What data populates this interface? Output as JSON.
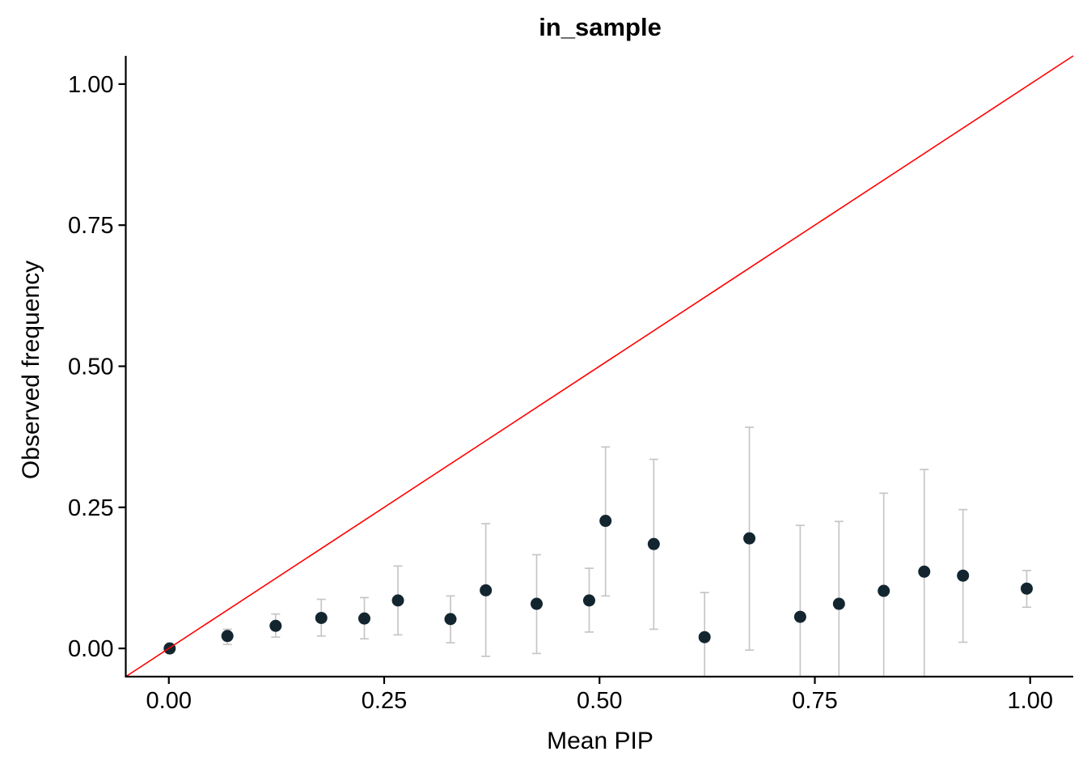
{
  "chart_data": {
    "type": "scatter",
    "title": "in_sample",
    "xlabel": "Mean PIP",
    "ylabel": "Observed frequency",
    "xlim": [
      -0.05,
      1.05
    ],
    "ylim": [
      -0.05,
      1.05
    ],
    "grid": false,
    "legend": false,
    "x_ticks": {
      "values": [
        0,
        0.25,
        0.5,
        0.75,
        1.0
      ],
      "labels": [
        "0.00",
        "0.25",
        "0.50",
        "0.75",
        "1.00"
      ]
    },
    "y_ticks": {
      "values": [
        0,
        0.25,
        0.5,
        0.75,
        1.0
      ],
      "labels": [
        "0.00",
        "0.25",
        "0.50",
        "0.75",
        "1.00"
      ]
    },
    "identity_line": {
      "slope": 1,
      "intercept": 0,
      "color": "#ff0000"
    },
    "point_color": "#132630",
    "error_bar_color": "#c6c6c6",
    "axis_color": "#000000",
    "points": [
      {
        "x": 0.001,
        "y": 0.0,
        "lo": 0.0,
        "hi": 0.003
      },
      {
        "x": 0.068,
        "y": 0.022,
        "lo": 0.007,
        "hi": 0.034
      },
      {
        "x": 0.124,
        "y": 0.04,
        "lo": 0.02,
        "hi": 0.061
      },
      {
        "x": 0.177,
        "y": 0.054,
        "lo": 0.022,
        "hi": 0.087
      },
      {
        "x": 0.227,
        "y": 0.053,
        "lo": 0.017,
        "hi": 0.09
      },
      {
        "x": 0.266,
        "y": 0.085,
        "lo": 0.024,
        "hi": 0.146
      },
      {
        "x": 0.327,
        "y": 0.052,
        "lo": 0.01,
        "hi": 0.093
      },
      {
        "x": 0.368,
        "y": 0.103,
        "lo": -0.014,
        "hi": 0.221
      },
      {
        "x": 0.427,
        "y": 0.079,
        "lo": -0.009,
        "hi": 0.166
      },
      {
        "x": 0.488,
        "y": 0.085,
        "lo": 0.029,
        "hi": 0.142
      },
      {
        "x": 0.507,
        "y": 0.226,
        "lo": 0.093,
        "hi": 0.357
      },
      {
        "x": 0.563,
        "y": 0.185,
        "lo": 0.034,
        "hi": 0.335
      },
      {
        "x": 0.622,
        "y": 0.02,
        "lo": -0.05,
        "hi": 0.099,
        "lo_clipped": true
      },
      {
        "x": 0.674,
        "y": 0.195,
        "lo": -0.003,
        "hi": 0.392
      },
      {
        "x": 0.733,
        "y": 0.056,
        "lo": -0.05,
        "hi": 0.218,
        "lo_clipped": true
      },
      {
        "x": 0.778,
        "y": 0.079,
        "lo": -0.05,
        "hi": 0.225,
        "lo_clipped": true
      },
      {
        "x": 0.83,
        "y": 0.102,
        "lo": -0.05,
        "hi": 0.275,
        "lo_clipped": true
      },
      {
        "x": 0.877,
        "y": 0.136,
        "lo": -0.05,
        "hi": 0.317,
        "lo_clipped": true
      },
      {
        "x": 0.922,
        "y": 0.129,
        "lo": 0.011,
        "hi": 0.246
      },
      {
        "x": 0.996,
        "y": 0.106,
        "lo": 0.073,
        "hi": 0.138
      }
    ]
  }
}
